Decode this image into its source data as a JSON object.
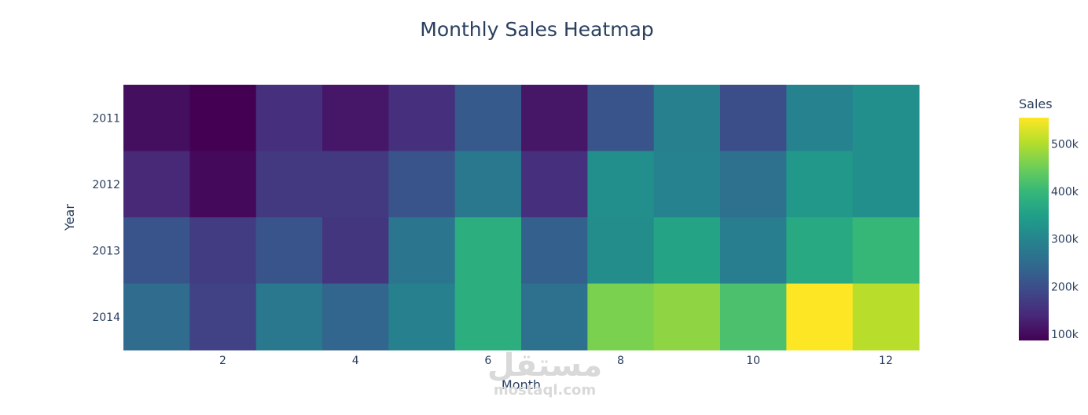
{
  "chart_data": {
    "type": "heatmap",
    "title": "Monthly Sales Heatmap",
    "xlabel": "Month",
    "ylabel": "Year",
    "x": [
      1,
      2,
      3,
      4,
      5,
      6,
      7,
      8,
      9,
      10,
      11,
      12
    ],
    "y": [
      "2011",
      "2012",
      "2013",
      "2014"
    ],
    "x_tick_labels": [
      "2",
      "4",
      "6",
      "8",
      "10",
      "12"
    ],
    "x_tick_values": [
      2,
      4,
      6,
      8,
      10,
      12
    ],
    "z": [
      [
        105000,
        87000,
        150000,
        117000,
        150000,
        220000,
        115000,
        210000,
        290000,
        200000,
        295000,
        320000
      ],
      [
        140000,
        98000,
        165000,
        165000,
        210000,
        275000,
        150000,
        320000,
        295000,
        260000,
        335000,
        320000
      ],
      [
        210000,
        170000,
        210000,
        160000,
        270000,
        380000,
        230000,
        315000,
        360000,
        285000,
        370000,
        400000
      ],
      [
        250000,
        180000,
        275000,
        240000,
        290000,
        380000,
        260000,
        460000,
        475000,
        420000,
        555000,
        505000
      ]
    ],
    "colorbar": {
      "title": "Sales",
      "tick_labels": [
        "100k",
        "200k",
        "300k",
        "400k",
        "500k"
      ],
      "tick_values": [
        100000,
        200000,
        300000,
        400000,
        500000
      ],
      "zmin": 87000,
      "zmax": 555000
    },
    "colorscale": "Viridis",
    "colors": [
      "#440154",
      "#482878",
      "#3e4989",
      "#31688e",
      "#26828e",
      "#1f9e89",
      "#35b779",
      "#6ece58",
      "#b5de2b",
      "#fde725"
    ]
  },
  "watermark": {
    "logo_text": "مستقل",
    "url_text": "mostaql.com"
  }
}
